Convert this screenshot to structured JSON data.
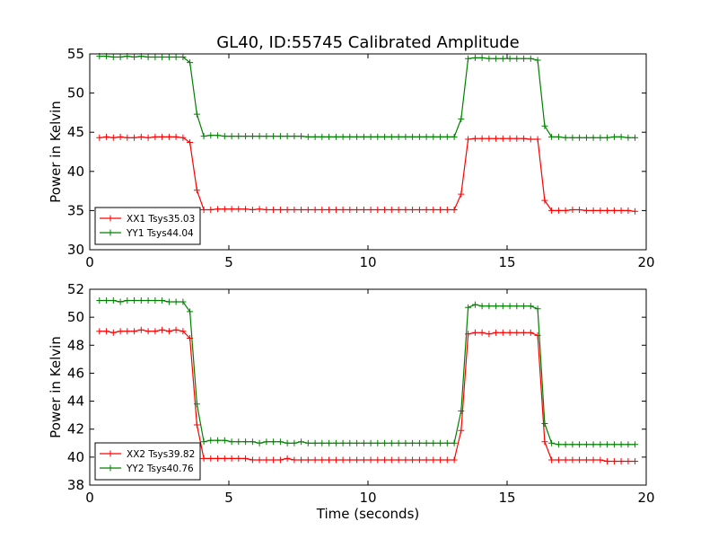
{
  "chart_data": {
    "title": "GL40, ID:55745 Calibrated Amplitude",
    "xlabel": "Time (seconds)",
    "colors": {
      "XX": "#ff0000",
      "YY": "#008000"
    },
    "panels": [
      {
        "type": "line",
        "ylabel": "Power in Kelvin",
        "xlim": [
          0,
          20
        ],
        "ylim": [
          30,
          55
        ],
        "xticks": [
          0,
          5,
          10,
          15,
          20
        ],
        "yticks": [
          30,
          35,
          40,
          45,
          50,
          55
        ],
        "legend_position": "lower-left",
        "series": [
          {
            "name": "XX1 Tsys35.03",
            "color": "#ff0000",
            "x": [
              0.35,
              0.6,
              0.85,
              1.1,
              1.35,
              1.6,
              1.85,
              2.1,
              2.35,
              2.6,
              2.85,
              3.1,
              3.35,
              3.6,
              3.85,
              4.1,
              4.35,
              4.6,
              4.85,
              5.1,
              5.35,
              5.6,
              5.85,
              6.1,
              6.35,
              6.6,
              6.85,
              7.1,
              7.35,
              7.6,
              7.85,
              8.1,
              8.35,
              8.6,
              8.85,
              9.1,
              9.35,
              9.6,
              9.85,
              10.1,
              10.35,
              10.6,
              10.85,
              11.1,
              11.35,
              11.6,
              11.85,
              12.1,
              12.35,
              12.6,
              12.85,
              13.1,
              13.35,
              13.6,
              13.85,
              14.1,
              14.35,
              14.6,
              14.85,
              15.1,
              15.35,
              15.6,
              15.85,
              16.1,
              16.35,
              16.6,
              16.85,
              17.1,
              17.35,
              17.6,
              17.85,
              18.1,
              18.35,
              18.6,
              18.85,
              19.1,
              19.35,
              19.6
            ],
            "y": [
              44.3,
              44.4,
              44.3,
              44.4,
              44.3,
              44.3,
              44.4,
              44.3,
              44.4,
              44.4,
              44.4,
              44.4,
              44.3,
              43.7,
              37.6,
              35.1,
              35.1,
              35.2,
              35.2,
              35.2,
              35.2,
              35.2,
              35.1,
              35.2,
              35.1,
              35.1,
              35.1,
              35.1,
              35.1,
              35.1,
              35.1,
              35.1,
              35.1,
              35.1,
              35.1,
              35.1,
              35.1,
              35.1,
              35.1,
              35.1,
              35.1,
              35.1,
              35.1,
              35.1,
              35.1,
              35.1,
              35.1,
              35.1,
              35.1,
              35.1,
              35.1,
              35.1,
              37.1,
              44.1,
              44.2,
              44.2,
              44.2,
              44.2,
              44.2,
              44.2,
              44.2,
              44.2,
              44.1,
              44.1,
              36.3,
              35.0,
              35.0,
              35.0,
              35.1,
              35.1,
              35.0,
              35.0,
              35.0,
              35.0,
              35.0,
              35.0,
              35.0,
              34.9
            ]
          },
          {
            "name": "YY1 Tsys44.04",
            "color": "#008000",
            "x": [
              0.35,
              0.6,
              0.85,
              1.1,
              1.35,
              1.6,
              1.85,
              2.1,
              2.35,
              2.6,
              2.85,
              3.1,
              3.35,
              3.6,
              3.85,
              4.1,
              4.35,
              4.6,
              4.85,
              5.1,
              5.35,
              5.6,
              5.85,
              6.1,
              6.35,
              6.6,
              6.85,
              7.1,
              7.35,
              7.6,
              7.85,
              8.1,
              8.35,
              8.6,
              8.85,
              9.1,
              9.35,
              9.6,
              9.85,
              10.1,
              10.35,
              10.6,
              10.85,
              11.1,
              11.35,
              11.6,
              11.85,
              12.1,
              12.35,
              12.6,
              12.85,
              13.1,
              13.35,
              13.6,
              13.85,
              14.1,
              14.35,
              14.6,
              14.85,
              15.1,
              15.35,
              15.6,
              15.85,
              16.1,
              16.35,
              16.6,
              16.85,
              17.1,
              17.35,
              17.6,
              17.85,
              18.1,
              18.35,
              18.6,
              18.85,
              19.1,
              19.35,
              19.6
            ],
            "y": [
              54.7,
              54.7,
              54.6,
              54.6,
              54.7,
              54.6,
              54.7,
              54.6,
              54.6,
              54.6,
              54.6,
              54.6,
              54.6,
              53.9,
              47.3,
              44.5,
              44.6,
              44.6,
              44.5,
              44.5,
              44.5,
              44.5,
              44.5,
              44.5,
              44.5,
              44.5,
              44.5,
              44.5,
              44.5,
              44.5,
              44.4,
              44.4,
              44.4,
              44.4,
              44.4,
              44.4,
              44.4,
              44.4,
              44.4,
              44.4,
              44.4,
              44.4,
              44.4,
              44.4,
              44.4,
              44.4,
              44.4,
              44.4,
              44.4,
              44.4,
              44.4,
              44.4,
              46.7,
              54.4,
              54.5,
              54.5,
              54.4,
              54.4,
              54.4,
              54.4,
              54.4,
              54.4,
              54.4,
              54.2,
              45.8,
              44.4,
              44.4,
              44.3,
              44.3,
              44.3,
              44.3,
              44.3,
              44.3,
              44.3,
              44.4,
              44.4,
              44.3,
              44.3
            ]
          }
        ]
      },
      {
        "type": "line",
        "ylabel": "Power in Kelvin",
        "xlim": [
          0,
          20
        ],
        "ylim": [
          38,
          52
        ],
        "xticks": [
          0,
          5,
          10,
          15,
          20
        ],
        "yticks": [
          38,
          40,
          42,
          44,
          46,
          48,
          50,
          52
        ],
        "legend_position": "lower-left",
        "series": [
          {
            "name": "XX2 Tsys39.82",
            "color": "#ff0000",
            "x": [
              0.35,
              0.6,
              0.85,
              1.1,
              1.35,
              1.6,
              1.85,
              2.1,
              2.35,
              2.6,
              2.85,
              3.1,
              3.35,
              3.6,
              3.85,
              4.1,
              4.35,
              4.6,
              4.85,
              5.1,
              5.35,
              5.6,
              5.85,
              6.1,
              6.35,
              6.6,
              6.85,
              7.1,
              7.35,
              7.6,
              7.85,
              8.1,
              8.35,
              8.6,
              8.85,
              9.1,
              9.35,
              9.6,
              9.85,
              10.1,
              10.35,
              10.6,
              10.85,
              11.1,
              11.35,
              11.6,
              11.85,
              12.1,
              12.35,
              12.6,
              12.85,
              13.1,
              13.35,
              13.6,
              13.85,
              14.1,
              14.35,
              14.6,
              14.85,
              15.1,
              15.35,
              15.6,
              15.85,
              16.1,
              16.35,
              16.6,
              16.85,
              17.1,
              17.35,
              17.6,
              17.85,
              18.1,
              18.35,
              18.6,
              18.85,
              19.1,
              19.35,
              19.6
            ],
            "y": [
              49.0,
              49.0,
              48.9,
              49.0,
              49.0,
              49.0,
              49.1,
              49.0,
              49.0,
              49.1,
              49.0,
              49.1,
              49.0,
              48.5,
              42.3,
              39.9,
              39.9,
              39.9,
              39.9,
              39.9,
              39.9,
              39.9,
              39.8,
              39.8,
              39.8,
              39.8,
              39.8,
              39.9,
              39.8,
              39.8,
              39.8,
              39.8,
              39.8,
              39.8,
              39.8,
              39.8,
              39.8,
              39.8,
              39.8,
              39.8,
              39.8,
              39.8,
              39.8,
              39.8,
              39.8,
              39.8,
              39.8,
              39.8,
              39.8,
              39.8,
              39.8,
              39.8,
              41.9,
              48.8,
              48.9,
              48.9,
              48.8,
              48.9,
              48.9,
              48.9,
              48.9,
              48.9,
              48.9,
              48.7,
              41.1,
              39.8,
              39.8,
              39.8,
              39.8,
              39.8,
              39.8,
              39.8,
              39.8,
              39.7,
              39.7,
              39.7,
              39.7,
              39.7
            ]
          },
          {
            "name": "YY2 Tsys40.76",
            "color": "#008000",
            "x": [
              0.35,
              0.6,
              0.85,
              1.1,
              1.35,
              1.6,
              1.85,
              2.1,
              2.35,
              2.6,
              2.85,
              3.1,
              3.35,
              3.6,
              3.85,
              4.1,
              4.35,
              4.6,
              4.85,
              5.1,
              5.35,
              5.6,
              5.85,
              6.1,
              6.35,
              6.6,
              6.85,
              7.1,
              7.35,
              7.6,
              7.85,
              8.1,
              8.35,
              8.6,
              8.85,
              9.1,
              9.35,
              9.6,
              9.85,
              10.1,
              10.35,
              10.6,
              10.85,
              11.1,
              11.35,
              11.6,
              11.85,
              12.1,
              12.35,
              12.6,
              12.85,
              13.1,
              13.35,
              13.6,
              13.85,
              14.1,
              14.35,
              14.6,
              14.85,
              15.1,
              15.35,
              15.6,
              15.85,
              16.1,
              16.35,
              16.6,
              16.85,
              17.1,
              17.35,
              17.6,
              17.85,
              18.1,
              18.35,
              18.6,
              18.85,
              19.1,
              19.35,
              19.6
            ],
            "y": [
              51.2,
              51.2,
              51.2,
              51.1,
              51.2,
              51.2,
              51.2,
              51.2,
              51.2,
              51.2,
              51.1,
              51.1,
              51.1,
              50.4,
              43.8,
              41.1,
              41.2,
              41.2,
              41.2,
              41.1,
              41.1,
              41.1,
              41.1,
              41.0,
              41.1,
              41.1,
              41.1,
              41.0,
              41.0,
              41.1,
              41.0,
              41.0,
              41.0,
              41.0,
              41.0,
              41.0,
              41.0,
              41.0,
              41.0,
              41.0,
              41.0,
              41.0,
              41.0,
              41.0,
              41.0,
              41.0,
              41.0,
              41.0,
              41.0,
              41.0,
              41.0,
              41.0,
              43.3,
              50.7,
              50.9,
              50.8,
              50.8,
              50.8,
              50.8,
              50.8,
              50.8,
              50.8,
              50.8,
              50.6,
              42.4,
              41.0,
              40.9,
              40.9,
              40.9,
              40.9,
              40.9,
              40.9,
              40.9,
              40.9,
              40.9,
              40.9,
              40.9,
              40.9
            ]
          }
        ]
      }
    ]
  }
}
